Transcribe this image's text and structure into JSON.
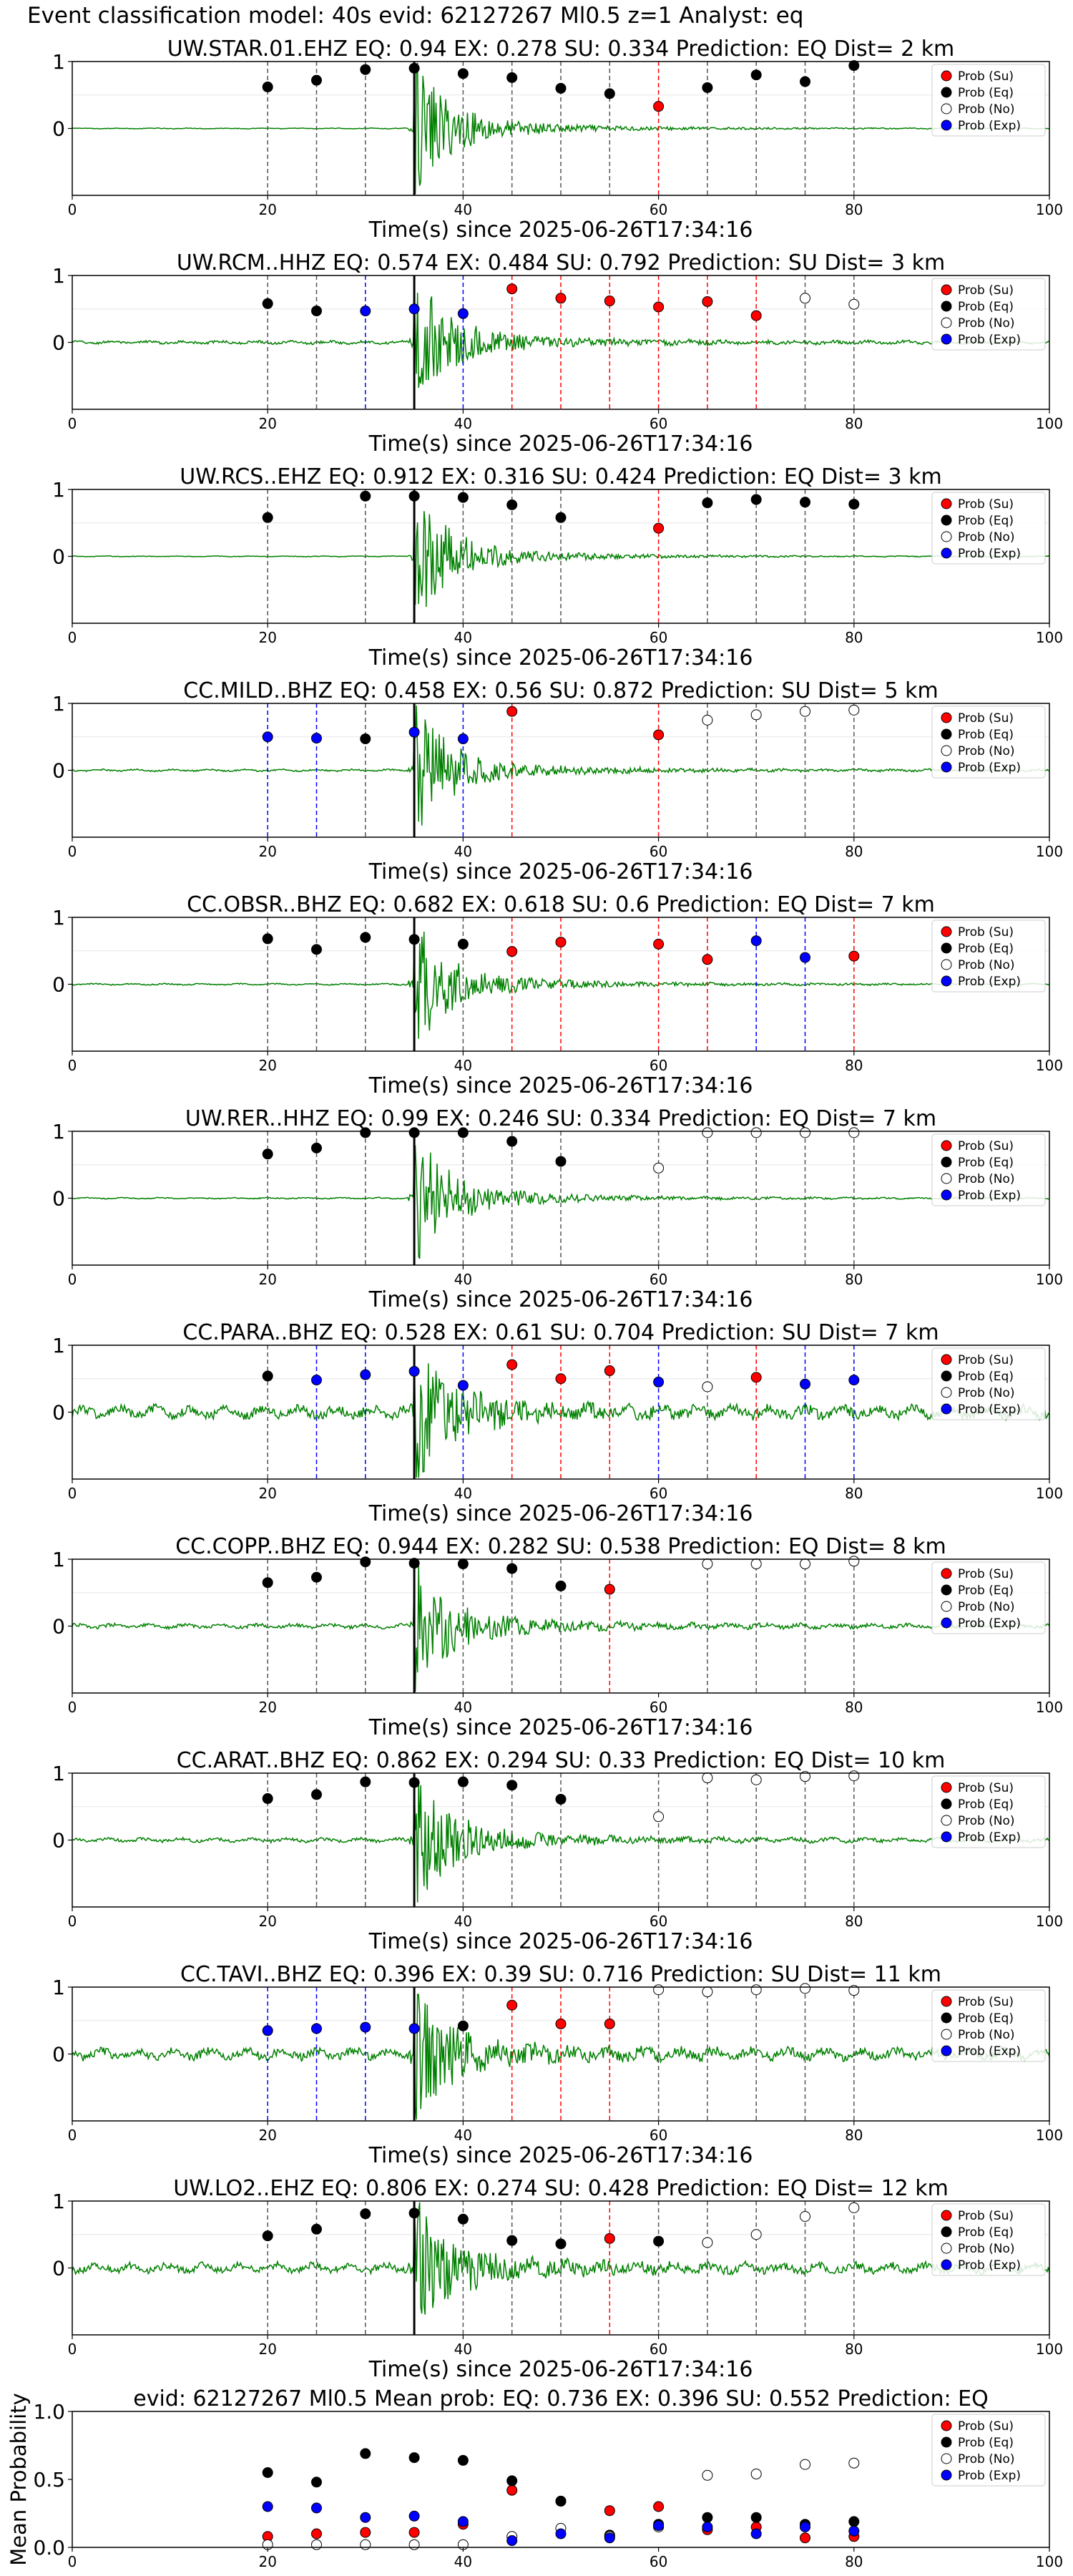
{
  "figure_title": "Event classification model: 40s evid: 62127267 Ml0.5 z=1 Analyst: eq",
  "colors": {
    "trace": "#008000",
    "su": "#ff0000",
    "eq": "#000000",
    "no": "#ffffff",
    "exp": "#0000ff",
    "pick": "#000000"
  },
  "legend_labels": [
    "Prob (Su)",
    "Prob (Eq)",
    "Prob (No)",
    "Prob (Exp)"
  ],
  "chart_data": [
    {
      "type": "scatter",
      "title": "UW.STAR.01.EHZ   EQ: 0.94  EX: 0.278  SU: 0.334   Prediction: EQ    Dist= 2 km",
      "xlabel": "Time(s) since 2025-06-26T17:34:16",
      "xlim": [
        0,
        100
      ],
      "ylim": [
        -1,
        1
      ],
      "xticks": [
        0,
        20,
        40,
        60,
        80,
        100
      ],
      "yticks": [
        1,
        0
      ],
      "legend": "top-right",
      "p_pick": 35,
      "noise": 0.3,
      "points": [
        {
          "x": 20,
          "cls": "eq",
          "p": 0.62
        },
        {
          "x": 25,
          "cls": "eq",
          "p": 0.72
        },
        {
          "x": 30,
          "cls": "eq",
          "p": 0.88
        },
        {
          "x": 35,
          "cls": "eq",
          "p": 0.9
        },
        {
          "x": 40,
          "cls": "eq",
          "p": 0.82
        },
        {
          "x": 45,
          "cls": "eq",
          "p": 0.76
        },
        {
          "x": 50,
          "cls": "eq",
          "p": 0.6
        },
        {
          "x": 55,
          "cls": "eq",
          "p": 0.52
        },
        {
          "x": 60,
          "cls": "su",
          "p": 0.33
        },
        {
          "x": 65,
          "cls": "eq",
          "p": 0.61
        },
        {
          "x": 70,
          "cls": "eq",
          "p": 0.8
        },
        {
          "x": 75,
          "cls": "eq",
          "p": 0.7
        },
        {
          "x": 80,
          "cls": "eq",
          "p": 0.94
        }
      ]
    },
    {
      "type": "scatter",
      "title": "UW.RCM..HHZ   EQ: 0.574  EX: 0.484  SU: 0.792   Prediction: SU    Dist= 3 km",
      "xlabel": "Time(s) since 2025-06-26T17:34:16",
      "xlim": [
        0,
        100
      ],
      "ylim": [
        -1,
        1
      ],
      "xticks": [
        0,
        20,
        40,
        60,
        80,
        100
      ],
      "yticks": [
        1,
        0
      ],
      "legend": "top-right",
      "p_pick": 35,
      "noise": 1.2,
      "points": [
        {
          "x": 20,
          "cls": "eq",
          "p": 0.58
        },
        {
          "x": 25,
          "cls": "eq",
          "p": 0.47
        },
        {
          "x": 30,
          "cls": "exp",
          "p": 0.47
        },
        {
          "x": 35,
          "cls": "exp",
          "p": 0.5
        },
        {
          "x": 40,
          "cls": "exp",
          "p": 0.43
        },
        {
          "x": 45,
          "cls": "su",
          "p": 0.8
        },
        {
          "x": 50,
          "cls": "su",
          "p": 0.66
        },
        {
          "x": 55,
          "cls": "su",
          "p": 0.62
        },
        {
          "x": 60,
          "cls": "su",
          "p": 0.53
        },
        {
          "x": 65,
          "cls": "su",
          "p": 0.61
        },
        {
          "x": 70,
          "cls": "su",
          "p": 0.4
        },
        {
          "x": 75,
          "cls": "no",
          "p": 0.66
        },
        {
          "x": 80,
          "cls": "no",
          "p": 0.57
        }
      ]
    },
    {
      "type": "scatter",
      "title": "UW.RCS..EHZ   EQ: 0.912  EX: 0.316  SU: 0.424   Prediction: EQ    Dist= 3 km",
      "xlabel": "Time(s) since 2025-06-26T17:34:16",
      "xlim": [
        0,
        100
      ],
      "ylim": [
        -1,
        1
      ],
      "xticks": [
        0,
        20,
        40,
        60,
        80,
        100
      ],
      "yticks": [
        1,
        0
      ],
      "legend": "top-right",
      "p_pick": 35,
      "noise": 0.3,
      "points": [
        {
          "x": 20,
          "cls": "eq",
          "p": 0.58
        },
        {
          "x": 30,
          "cls": "eq",
          "p": 0.9
        },
        {
          "x": 35,
          "cls": "eq",
          "p": 0.9
        },
        {
          "x": 40,
          "cls": "eq",
          "p": 0.88
        },
        {
          "x": 45,
          "cls": "eq",
          "p": 0.77
        },
        {
          "x": 50,
          "cls": "eq",
          "p": 0.58
        },
        {
          "x": 60,
          "cls": "su",
          "p": 0.42
        },
        {
          "x": 65,
          "cls": "eq",
          "p": 0.8
        },
        {
          "x": 70,
          "cls": "eq",
          "p": 0.85
        },
        {
          "x": 75,
          "cls": "eq",
          "p": 0.81
        },
        {
          "x": 80,
          "cls": "eq",
          "p": 0.78
        }
      ]
    },
    {
      "type": "scatter",
      "title": "CC.MILD..BHZ   EQ: 0.458  EX: 0.56  SU: 0.872   Prediction: SU    Dist= 5 km",
      "xlabel": "Time(s) since 2025-06-26T17:34:16",
      "xlim": [
        0,
        100
      ],
      "ylim": [
        -1,
        1
      ],
      "xticks": [
        0,
        20,
        40,
        60,
        80,
        100
      ],
      "yticks": [
        1,
        0
      ],
      "legend": "top-right",
      "p_pick": 35,
      "noise": 0.8,
      "points": [
        {
          "x": 20,
          "cls": "exp",
          "p": 0.5
        },
        {
          "x": 25,
          "cls": "exp",
          "p": 0.48
        },
        {
          "x": 30,
          "cls": "eq",
          "p": 0.47
        },
        {
          "x": 35,
          "cls": "exp",
          "p": 0.57
        },
        {
          "x": 40,
          "cls": "exp",
          "p": 0.47
        },
        {
          "x": 45,
          "cls": "su",
          "p": 0.88
        },
        {
          "x": 60,
          "cls": "su",
          "p": 0.53
        },
        {
          "x": 65,
          "cls": "no",
          "p": 0.75
        },
        {
          "x": 70,
          "cls": "no",
          "p": 0.83
        },
        {
          "x": 75,
          "cls": "no",
          "p": 0.88
        },
        {
          "x": 80,
          "cls": "no",
          "p": 0.9
        }
      ]
    },
    {
      "type": "scatter",
      "title": "CC.OBSR..BHZ   EQ: 0.682  EX: 0.618  SU: 0.6   Prediction: EQ    Dist= 7 km",
      "xlabel": "Time(s) since 2025-06-26T17:34:16",
      "xlim": [
        0,
        100
      ],
      "ylim": [
        -1,
        1
      ],
      "xticks": [
        0,
        20,
        40,
        60,
        80,
        100
      ],
      "yticks": [
        1,
        0
      ],
      "legend": "top-right",
      "p_pick": 35,
      "noise": 0.6,
      "points": [
        {
          "x": 20,
          "cls": "eq",
          "p": 0.68
        },
        {
          "x": 25,
          "cls": "eq",
          "p": 0.52
        },
        {
          "x": 30,
          "cls": "eq",
          "p": 0.7
        },
        {
          "x": 35,
          "cls": "eq",
          "p": 0.67
        },
        {
          "x": 40,
          "cls": "eq",
          "p": 0.6
        },
        {
          "x": 45,
          "cls": "su",
          "p": 0.49
        },
        {
          "x": 50,
          "cls": "su",
          "p": 0.63
        },
        {
          "x": 60,
          "cls": "su",
          "p": 0.6
        },
        {
          "x": 65,
          "cls": "su",
          "p": 0.37
        },
        {
          "x": 70,
          "cls": "exp",
          "p": 0.65
        },
        {
          "x": 75,
          "cls": "exp",
          "p": 0.4
        },
        {
          "x": 80,
          "cls": "su",
          "p": 0.42
        }
      ]
    },
    {
      "type": "scatter",
      "title": "UW.RER..HHZ   EQ: 0.99  EX: 0.246  SU: 0.334   Prediction: EQ    Dist= 7 km",
      "xlabel": "Time(s) since 2025-06-26T17:34:16",
      "xlim": [
        0,
        100
      ],
      "ylim": [
        -1,
        1
      ],
      "xticks": [
        0,
        20,
        40,
        60,
        80,
        100
      ],
      "yticks": [
        1,
        0
      ],
      "legend": "top-right",
      "p_pick": 35,
      "noise": 0.5,
      "points": [
        {
          "x": 20,
          "cls": "eq",
          "p": 0.66
        },
        {
          "x": 25,
          "cls": "eq",
          "p": 0.75
        },
        {
          "x": 30,
          "cls": "eq",
          "p": 0.98
        },
        {
          "x": 35,
          "cls": "eq",
          "p": 0.98
        },
        {
          "x": 40,
          "cls": "eq",
          "p": 0.98
        },
        {
          "x": 45,
          "cls": "eq",
          "p": 0.85
        },
        {
          "x": 50,
          "cls": "eq",
          "p": 0.55
        },
        {
          "x": 60,
          "cls": "no",
          "p": 0.45
        },
        {
          "x": 65,
          "cls": "no",
          "p": 0.98
        },
        {
          "x": 70,
          "cls": "no",
          "p": 0.98
        },
        {
          "x": 75,
          "cls": "no",
          "p": 0.98
        },
        {
          "x": 80,
          "cls": "no",
          "p": 0.98
        }
      ]
    },
    {
      "type": "scatter",
      "title": "CC.PARA..BHZ   EQ: 0.528  EX: 0.61  SU: 0.704   Prediction: SU    Dist= 7 km",
      "xlabel": "Time(s) since 2025-06-26T17:34:16",
      "xlim": [
        0,
        100
      ],
      "ylim": [
        -1,
        1
      ],
      "xticks": [
        0,
        20,
        40,
        60,
        80,
        100
      ],
      "yticks": [
        1,
        0
      ],
      "legend": "top-right",
      "p_pick": 35,
      "noise": 4.5,
      "points": [
        {
          "x": 20,
          "cls": "eq",
          "p": 0.54
        },
        {
          "x": 25,
          "cls": "exp",
          "p": 0.48
        },
        {
          "x": 30,
          "cls": "exp",
          "p": 0.56
        },
        {
          "x": 35,
          "cls": "exp",
          "p": 0.61
        },
        {
          "x": 40,
          "cls": "exp",
          "p": 0.4
        },
        {
          "x": 45,
          "cls": "su",
          "p": 0.71
        },
        {
          "x": 50,
          "cls": "su",
          "p": 0.5
        },
        {
          "x": 55,
          "cls": "su",
          "p": 0.62
        },
        {
          "x": 60,
          "cls": "exp",
          "p": 0.45
        },
        {
          "x": 65,
          "cls": "no",
          "p": 0.38
        },
        {
          "x": 70,
          "cls": "su",
          "p": 0.52
        },
        {
          "x": 75,
          "cls": "exp",
          "p": 0.42
        },
        {
          "x": 80,
          "cls": "exp",
          "p": 0.48
        }
      ]
    },
    {
      "type": "scatter",
      "title": "CC.COPP..BHZ   EQ: 0.944  EX: 0.282  SU: 0.538   Prediction: EQ    Dist= 8 km",
      "xlabel": "Time(s) since 2025-06-26T17:34:16",
      "xlim": [
        0,
        100
      ],
      "ylim": [
        -1,
        1
      ],
      "xticks": [
        0,
        20,
        40,
        60,
        80,
        100
      ],
      "yticks": [
        1,
        0
      ],
      "legend": "top-right",
      "p_pick": 35,
      "noise": 1.6,
      "points": [
        {
          "x": 20,
          "cls": "eq",
          "p": 0.65
        },
        {
          "x": 25,
          "cls": "eq",
          "p": 0.73
        },
        {
          "x": 30,
          "cls": "eq",
          "p": 0.96
        },
        {
          "x": 35,
          "cls": "eq",
          "p": 0.94
        },
        {
          "x": 40,
          "cls": "eq",
          "p": 0.93
        },
        {
          "x": 45,
          "cls": "eq",
          "p": 0.86
        },
        {
          "x": 50,
          "cls": "eq",
          "p": 0.6
        },
        {
          "x": 55,
          "cls": "su",
          "p": 0.55
        },
        {
          "x": 65,
          "cls": "no",
          "p": 0.93
        },
        {
          "x": 70,
          "cls": "no",
          "p": 0.93
        },
        {
          "x": 75,
          "cls": "no",
          "p": 0.93
        },
        {
          "x": 80,
          "cls": "no",
          "p": 0.97
        }
      ]
    },
    {
      "type": "scatter",
      "title": "CC.ARAT..BHZ   EQ: 0.862  EX: 0.294  SU: 0.33   Prediction: EQ    Dist= 10 km",
      "xlabel": "Time(s) since 2025-06-26T17:34:16",
      "xlim": [
        0,
        100
      ],
      "ylim": [
        -1,
        1
      ],
      "xticks": [
        0,
        20,
        40,
        60,
        80,
        100
      ],
      "yticks": [
        1,
        0
      ],
      "legend": "top-right",
      "p_pick": 35,
      "noise": 1.5,
      "points": [
        {
          "x": 20,
          "cls": "eq",
          "p": 0.62
        },
        {
          "x": 25,
          "cls": "eq",
          "p": 0.68
        },
        {
          "x": 30,
          "cls": "eq",
          "p": 0.87
        },
        {
          "x": 35,
          "cls": "eq",
          "p": 0.86
        },
        {
          "x": 40,
          "cls": "eq",
          "p": 0.87
        },
        {
          "x": 45,
          "cls": "eq",
          "p": 0.82
        },
        {
          "x": 50,
          "cls": "eq",
          "p": 0.61
        },
        {
          "x": 60,
          "cls": "no",
          "p": 0.35
        },
        {
          "x": 65,
          "cls": "no",
          "p": 0.93
        },
        {
          "x": 70,
          "cls": "no",
          "p": 0.9
        },
        {
          "x": 75,
          "cls": "no",
          "p": 0.95
        },
        {
          "x": 80,
          "cls": "no",
          "p": 0.96
        }
      ]
    },
    {
      "type": "scatter",
      "title": "CC.TAVI..BHZ   EQ: 0.396  EX: 0.39  SU: 0.716   Prediction: SU    Dist= 11 km",
      "xlabel": "Time(s) since 2025-06-26T17:34:16",
      "xlim": [
        0,
        100
      ],
      "ylim": [
        -1,
        1
      ],
      "xticks": [
        0,
        20,
        40,
        60,
        80,
        100
      ],
      "yticks": [
        1,
        0
      ],
      "legend": "top-right",
      "p_pick": 35,
      "noise": 4.0,
      "points": [
        {
          "x": 20,
          "cls": "exp",
          "p": 0.35
        },
        {
          "x": 25,
          "cls": "exp",
          "p": 0.38
        },
        {
          "x": 30,
          "cls": "exp",
          "p": 0.4
        },
        {
          "x": 35,
          "cls": "exp",
          "p": 0.38
        },
        {
          "x": 40,
          "cls": "eq",
          "p": 0.42
        },
        {
          "x": 45,
          "cls": "su",
          "p": 0.73
        },
        {
          "x": 50,
          "cls": "su",
          "p": 0.45
        },
        {
          "x": 55,
          "cls": "su",
          "p": 0.45
        },
        {
          "x": 60,
          "cls": "no",
          "p": 0.96
        },
        {
          "x": 65,
          "cls": "no",
          "p": 0.93
        },
        {
          "x": 70,
          "cls": "no",
          "p": 0.96
        },
        {
          "x": 75,
          "cls": "no",
          "p": 0.98
        },
        {
          "x": 80,
          "cls": "no",
          "p": 0.95
        }
      ]
    },
    {
      "type": "scatter",
      "title": "UW.LO2..EHZ   EQ: 0.806  EX: 0.274  SU: 0.428   Prediction: EQ    Dist= 12 km",
      "xlabel": "Time(s) since 2025-06-26T17:34:16",
      "xlim": [
        0,
        100
      ],
      "ylim": [
        -1,
        1
      ],
      "xticks": [
        0,
        20,
        40,
        60,
        80,
        100
      ],
      "yticks": [
        1,
        0
      ],
      "legend": "top-right",
      "p_pick": 35,
      "noise": 3.5,
      "points": [
        {
          "x": 20,
          "cls": "eq",
          "p": 0.48
        },
        {
          "x": 25,
          "cls": "eq",
          "p": 0.58
        },
        {
          "x": 30,
          "cls": "eq",
          "p": 0.81
        },
        {
          "x": 35,
          "cls": "eq",
          "p": 0.82
        },
        {
          "x": 40,
          "cls": "eq",
          "p": 0.73
        },
        {
          "x": 45,
          "cls": "eq",
          "p": 0.41
        },
        {
          "x": 50,
          "cls": "eq",
          "p": 0.36
        },
        {
          "x": 55,
          "cls": "su",
          "p": 0.44
        },
        {
          "x": 60,
          "cls": "eq",
          "p": 0.4
        },
        {
          "x": 65,
          "cls": "no",
          "p": 0.38
        },
        {
          "x": 70,
          "cls": "no",
          "p": 0.5
        },
        {
          "x": 75,
          "cls": "no",
          "p": 0.77
        },
        {
          "x": 80,
          "cls": "no",
          "p": 0.9
        }
      ]
    },
    {
      "type": "scatter",
      "title": "evid: 62127267  Ml0.5   Mean prob:   EQ: 0.736  EX: 0.396  SU: 0.552   Prediction: EQ",
      "xlabel": "",
      "ylabel": "Mean Probability",
      "xlim": [
        0,
        100
      ],
      "ylim": [
        0,
        1
      ],
      "xticks": [
        0,
        20,
        40,
        60,
        80,
        100
      ],
      "yticks": [
        "1.0",
        "0.5",
        "0.0"
      ],
      "legend": "top-right",
      "x": [
        20,
        25,
        30,
        35,
        40,
        45,
        50,
        55,
        60,
        65,
        70,
        75,
        80
      ],
      "series": [
        {
          "cls": "su",
          "name": "Prob (Su)",
          "values": [
            0.08,
            0.1,
            0.11,
            0.11,
            0.17,
            0.42,
            0.34,
            0.27,
            0.3,
            0.13,
            0.15,
            0.07,
            0.08
          ]
        },
        {
          "cls": "eq",
          "name": "Prob (Eq)",
          "values": [
            0.55,
            0.48,
            0.69,
            0.66,
            0.64,
            0.49,
            0.34,
            0.09,
            0.17,
            0.22,
            0.22,
            0.17,
            0.19
          ]
        },
        {
          "cls": "no",
          "name": "Prob (No)",
          "values": [
            0.02,
            0.02,
            0.02,
            0.02,
            0.02,
            0.08,
            0.14,
            0.08,
            0.15,
            0.53,
            0.54,
            0.61,
            0.62
          ]
        },
        {
          "cls": "exp",
          "name": "Prob (Exp)",
          "values": [
            0.3,
            0.29,
            0.22,
            0.23,
            0.19,
            0.05,
            0.1,
            0.07,
            0.16,
            0.15,
            0.1,
            0.15,
            0.12
          ]
        }
      ]
    }
  ]
}
